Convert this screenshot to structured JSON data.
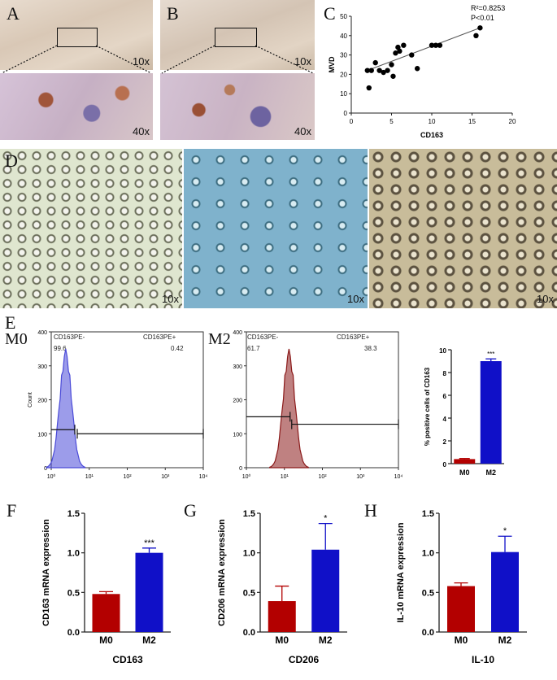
{
  "panel_labels": {
    "A": "A",
    "B": "B",
    "C": "C",
    "D": "D",
    "E": "E",
    "F": "F",
    "G": "G",
    "H": "H"
  },
  "panelA": {
    "top_mag": "10x",
    "bottom_mag": "40x"
  },
  "panelB": {
    "top_mag": "10x",
    "bottom_mag": "40x"
  },
  "panelD": {
    "mags": [
      "10x",
      "10x",
      "10x"
    ]
  },
  "flow": {
    "m0": {
      "tag": "M0",
      "gate_neg": "CD163PE-",
      "gate_pos": "CD163PE+",
      "val_neg": "99.6",
      "val_pos": "0.42"
    },
    "m2": {
      "tag": "M2",
      "gate_neg": "CD163PE-",
      "gate_pos": "CD163PE+",
      "val_neg": "61.7",
      "val_pos": "38.3"
    }
  },
  "colors": {
    "m0": "#b30000",
    "m2": "#1010c8",
    "m0_hist": "#4a4ad8",
    "m2_hist": "#8b1a1a"
  },
  "chart_data": [
    {
      "id": "C",
      "type": "scatter",
      "xlabel": "CD163",
      "ylabel": "MVD",
      "xlim": [
        0,
        20
      ],
      "ylim": [
        0,
        50
      ],
      "xticks": [
        "0",
        "5",
        "10",
        "15",
        "20"
      ],
      "yticks": [
        "0",
        "10",
        "20",
        "30",
        "40",
        "50"
      ],
      "annotations": [
        "R²=0.8253",
        "P<0.01"
      ],
      "points": [
        [
          2,
          22
        ],
        [
          2.2,
          13
        ],
        [
          2.5,
          22
        ],
        [
          3,
          26
        ],
        [
          3.5,
          22
        ],
        [
          4,
          21
        ],
        [
          4.5,
          22
        ],
        [
          5,
          25
        ],
        [
          5.2,
          19
        ],
        [
          5.5,
          31
        ],
        [
          5.8,
          34
        ],
        [
          6,
          32
        ],
        [
          6.5,
          35
        ],
        [
          7.5,
          30
        ],
        [
          8.2,
          23
        ],
        [
          10,
          35
        ],
        [
          10.5,
          35
        ],
        [
          11,
          35
        ],
        [
          15.5,
          40
        ],
        [
          16,
          44
        ]
      ],
      "trend": [
        [
          2,
          22
        ],
        [
          16,
          44
        ]
      ]
    },
    {
      "id": "E_hist_m0",
      "type": "area",
      "xlabel": "",
      "ylabel": "Count",
      "ylim": [
        0,
        400
      ],
      "yticks": [
        "0",
        "100",
        "200",
        "300",
        "400"
      ],
      "xticks": [
        "10⁰",
        "10¹",
        "10²",
        "10³",
        "10⁴"
      ]
    },
    {
      "id": "E_hist_m2",
      "type": "area",
      "xlabel": "",
      "ylabel": "",
      "ylim": [
        0,
        400
      ],
      "yticks": [
        "0",
        "100",
        "200",
        "300",
        "400"
      ],
      "xticks": [
        "10⁰",
        "10¹",
        "10²",
        "10³",
        "10⁴"
      ]
    },
    {
      "id": "E_bar",
      "type": "bar",
      "categories": [
        "M0",
        "M2"
      ],
      "values": [
        0.4,
        9.0
      ],
      "errors": [
        0.05,
        0.2
      ],
      "ylabel": "% positive cells of CD163",
      "ylim": [
        0,
        10
      ],
      "yticks": [
        "0",
        "2",
        "4",
        "6",
        "8",
        "10"
      ],
      "sig": [
        "",
        "***"
      ]
    },
    {
      "id": "F",
      "type": "bar",
      "categories": [
        "M0",
        "M2"
      ],
      "values": [
        0.48,
        1.0
      ],
      "errors": [
        0.03,
        0.06
      ],
      "ylabel": "CD163 mRNA expression",
      "xlabel": "CD163",
      "ylim": [
        0,
        1.5
      ],
      "yticks": [
        "0.0",
        "0.5",
        "1.0",
        "1.5"
      ],
      "sig": [
        "",
        "***"
      ]
    },
    {
      "id": "G",
      "type": "bar",
      "categories": [
        "M0",
        "M2"
      ],
      "values": [
        0.39,
        1.04
      ],
      "errors": [
        0.19,
        0.33
      ],
      "ylabel": "CD206 mRNA expression",
      "xlabel": "CD206",
      "ylim": [
        0,
        1.5
      ],
      "yticks": [
        "0.0",
        "0.5",
        "1.0",
        "1.5"
      ],
      "sig": [
        "",
        "*"
      ]
    },
    {
      "id": "H",
      "type": "bar",
      "categories": [
        "M0",
        "M2"
      ],
      "values": [
        0.58,
        1.01
      ],
      "errors": [
        0.04,
        0.2
      ],
      "ylabel": "IL-10 mRNA expression",
      "xlabel": "IL-10",
      "ylim": [
        0,
        1.5
      ],
      "yticks": [
        "0.0",
        "0.5",
        "1.0",
        "1.5"
      ],
      "sig": [
        "",
        "*"
      ]
    }
  ]
}
